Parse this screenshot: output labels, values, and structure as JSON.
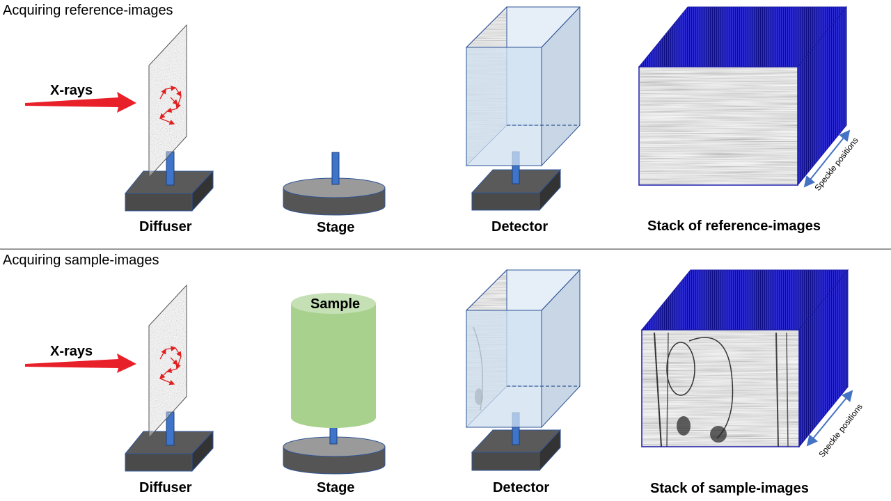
{
  "sections": {
    "reference": {
      "title": "Acquiring reference-images",
      "xrays": "X-rays",
      "labels": {
        "diffuser": "Diffuser",
        "stage": "Stage",
        "detector": "Detector",
        "stack": "Stack of reference-images"
      },
      "speckle": "Speckle positions"
    },
    "sample": {
      "title": "Acquiring sample-images",
      "xrays": "X-rays",
      "sample_label": "Sample",
      "labels": {
        "diffuser": "Diffuser",
        "stage": "Stage",
        "detector": "Detector",
        "stack": "Stack of sample-images"
      },
      "speckle": "Speckle positions"
    }
  },
  "colors": {
    "xray_arrow": "#e8202a",
    "base_top": "#6e6e6e",
    "base_front": "#4a4a4a",
    "base_side": "#3a3a3a",
    "post": "#3e74c9",
    "stage_top": "#9a9a9a",
    "stage_side": "#555555",
    "detector_fill": "#cfe0f0",
    "detector_edge": "#2f5597",
    "stack_frame": "#1a1aa8",
    "sample_fill": "#a9d18e",
    "sample_top": "#c5e0b4",
    "speckle_arrow": "#4472c4",
    "divider": "#333333"
  }
}
